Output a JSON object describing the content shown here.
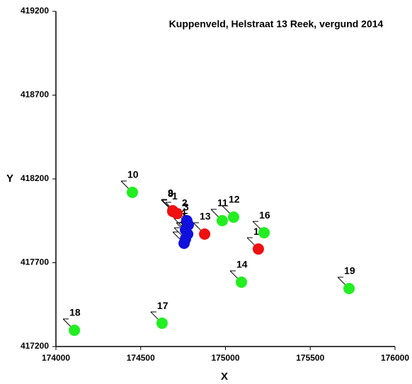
{
  "chart_data": {
    "type": "scatter",
    "title": "Kuppenveld, Helstraat 13 Reek, vergund 2014",
    "xlabel": "X",
    "ylabel": "Y",
    "xlim": [
      174000,
      176000
    ],
    "xticks": [
      174000,
      174500,
      175000,
      175500,
      176000
    ],
    "ylim": [
      417200,
      419200
    ],
    "yticks": [
      417200,
      417700,
      418200,
      418700,
      419200
    ],
    "grid": false,
    "series": [
      {
        "color": "#22ee22",
        "labels": [
          "10",
          "18",
          "17",
          "14",
          "19",
          "16",
          "11",
          "12"
        ],
        "x": [
          174451,
          174109,
          174626,
          175094,
          175729,
          175228,
          174981,
          175048
        ],
        "values": [
          418120,
          417297,
          417339,
          417584,
          417546,
          417879,
          417951,
          417972
        ]
      },
      {
        "color": "#ee1111",
        "labels": [
          "15",
          "13",
          "1",
          "8",
          "9"
        ],
        "x": [
          175194,
          174877,
          174714,
          174689,
          174689
        ],
        "values": [
          417782,
          417871,
          417993,
          418006,
          418010
        ]
      },
      {
        "color": "#1111dd",
        "labels": [
          "2",
          "3",
          "4",
          "5",
          "6",
          "7"
        ],
        "x": [
          174772,
          174781,
          174764,
          174777,
          174764,
          174756
        ],
        "values": [
          417951,
          417926,
          417896,
          417871,
          417841,
          417816
        ]
      }
    ]
  }
}
